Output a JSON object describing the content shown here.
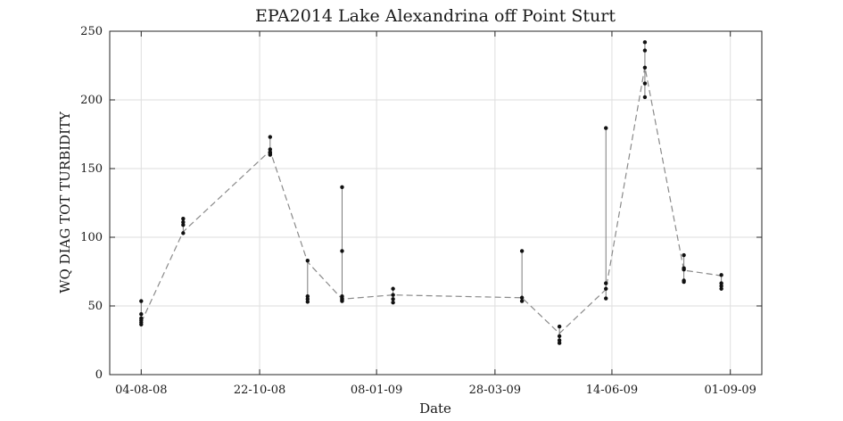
{
  "chart_data": {
    "type": "scatter",
    "title": "EPA2014 Lake Alexandrina off Point Sturt",
    "xlabel": "Date",
    "ylabel": "WQ DIAG TOT TURBIDITY",
    "ylim": [
      0,
      250
    ],
    "xlim": [
      "2008-07-14",
      "2009-09-22"
    ],
    "grid": true,
    "yticks": [
      0,
      50,
      100,
      150,
      200,
      250
    ],
    "xticks": [
      {
        "date": "2008-08-04",
        "label": "04-08-08"
      },
      {
        "date": "2008-10-22",
        "label": "22-10-08"
      },
      {
        "date": "2009-01-08",
        "label": "08-01-09"
      },
      {
        "date": "2009-03-28",
        "label": "28-03-09"
      },
      {
        "date": "2009-06-14",
        "label": "14-06-09"
      },
      {
        "date": "2009-09-01",
        "label": "01-09-09"
      }
    ],
    "series": [
      {
        "style": "points",
        "color": "#111111",
        "groups": [
          {
            "x": "2008-08-04",
            "values": [
              53.5,
              44,
              41,
              39.5,
              38,
              36.5
            ]
          },
          {
            "x": "2008-09-01",
            "values": [
              113.5,
              111,
              109,
              103
            ]
          },
          {
            "x": "2008-10-29",
            "values": [
              173,
              164,
              162,
              161,
              160
            ]
          },
          {
            "x": "2008-11-23",
            "values": [
              83,
              57,
              55,
              53
            ]
          },
          {
            "x": "2008-12-16",
            "values": [
              136.5,
              90,
              57,
              55.5,
              54.5,
              53.5
            ]
          },
          {
            "x": "2009-01-19",
            "values": [
              62.5,
              58,
              55,
              52.5
            ]
          },
          {
            "x": "2009-04-15",
            "values": [
              90,
              56,
              53.5
            ]
          },
          {
            "x": "2009-05-10",
            "values": [
              35,
              28,
              25,
              23
            ]
          },
          {
            "x": "2009-06-10",
            "values": [
              179.5,
              66.5,
              62.5,
              55.5
            ]
          },
          {
            "x": "2009-07-06",
            "values": [
              242,
              236,
              223.5,
              212,
              202
            ]
          },
          {
            "x": "2009-08-01",
            "values": [
              87,
              77.5,
              76.5,
              68.5,
              67.5
            ]
          },
          {
            "x": "2009-08-26",
            "values": [
              72.5,
              66.5,
              64.5,
              62.5
            ]
          }
        ]
      },
      {
        "style": "dashed-line",
        "color": "#8a8a8a",
        "x": [
          "2008-08-04",
          "2008-09-01",
          "2008-10-29",
          "2008-11-23",
          "2008-12-16",
          "2009-01-19",
          "2009-04-15",
          "2009-05-10",
          "2009-06-10",
          "2009-07-06",
          "2009-08-01",
          "2009-08-26"
        ],
        "values": [
          38,
          104,
          163,
          82,
          55,
          58,
          56,
          30,
          62,
          224,
          76,
          72
        ]
      }
    ]
  }
}
